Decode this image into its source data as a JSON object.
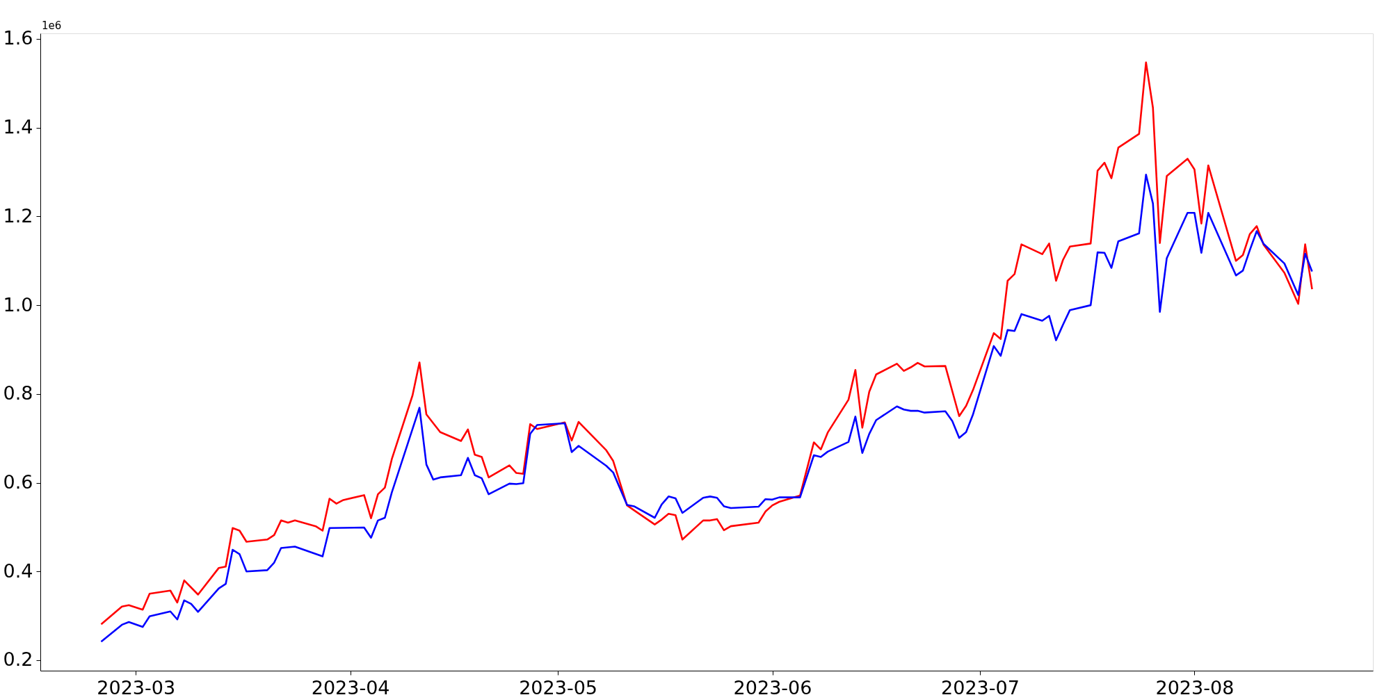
{
  "chart_data": {
    "type": "line",
    "grid": false,
    "line_style": "solid",
    "annotations": [
      "1e6"
    ],
    "xlim": [
      "2023-02-15T05:00",
      "2023-08-26T19:00"
    ],
    "xticks": [
      {
        "value": "2023-03-01",
        "label": "2023-03"
      },
      {
        "value": "2023-04-01",
        "label": "2023-04"
      },
      {
        "value": "2023-05-01",
        "label": "2023-05"
      },
      {
        "value": "2023-06-01",
        "label": "2023-06"
      },
      {
        "value": "2023-07-01",
        "label": "2023-07"
      },
      {
        "value": "2023-08-01",
        "label": "2023-08"
      }
    ],
    "ylim": [
      0.1765,
      1.6125
    ],
    "yticks": [
      0.2,
      0.4,
      0.6,
      0.8,
      {
        "value": 1.0,
        "label": "1.0"
      },
      1.2,
      1.4,
      1.6
    ],
    "series": [
      {
        "color": "#ff0000",
        "x": [
          "2023-02-24",
          "2023-02-27",
          "2023-02-28",
          "2023-03-02",
          "2023-03-03",
          "2023-03-06",
          "2023-03-07",
          "2023-03-08",
          "2023-03-10",
          "2023-03-13",
          "2023-03-14",
          "2023-03-15",
          "2023-03-16",
          "2023-03-17",
          "2023-03-20",
          "2023-03-21",
          "2023-03-22",
          "2023-03-23",
          "2023-03-24",
          "2023-03-27",
          "2023-03-28",
          "2023-03-29",
          "2023-03-30",
          "2023-03-31",
          "2023-04-03",
          "2023-04-04",
          "2023-04-05",
          "2023-04-06",
          "2023-04-07",
          "2023-04-10",
          "2023-04-11",
          "2023-04-12",
          "2023-04-14",
          "2023-04-17",
          "2023-04-18",
          "2023-04-19",
          "2023-04-20",
          "2023-04-21",
          "2023-04-24",
          "2023-04-25",
          "2023-04-26",
          "2023-04-27",
          "2023-04-28",
          "2023-05-02",
          "2023-05-03",
          "2023-05-04",
          "2023-05-08",
          "2023-05-09",
          "2023-05-11",
          "2023-05-12",
          "2023-05-15",
          "2023-05-16",
          "2023-05-17",
          "2023-05-18",
          "2023-05-19",
          "2023-05-22",
          "2023-05-23",
          "2023-05-24",
          "2023-05-25",
          "2023-05-26",
          "2023-05-30",
          "2023-05-31",
          "2023-06-01",
          "2023-06-02",
          "2023-06-05",
          "2023-06-07",
          "2023-06-08",
          "2023-06-09",
          "2023-06-12",
          "2023-06-13",
          "2023-06-14",
          "2023-06-15",
          "2023-06-16",
          "2023-06-19",
          "2023-06-20",
          "2023-06-21",
          "2023-06-22",
          "2023-06-23",
          "2023-06-26",
          "2023-06-28",
          "2023-06-29",
          "2023-06-30",
          "2023-07-03",
          "2023-07-04",
          "2023-07-05",
          "2023-07-06",
          "2023-07-07",
          "2023-07-10",
          "2023-07-11",
          "2023-07-12",
          "2023-07-13",
          "2023-07-14",
          "2023-07-17",
          "2023-07-18",
          "2023-07-19",
          "2023-07-20",
          "2023-07-21",
          "2023-07-24",
          "2023-07-25",
          "2023-07-26",
          "2023-07-27",
          "2023-07-28",
          "2023-07-31",
          "2023-08-01",
          "2023-08-02",
          "2023-08-03",
          "2023-08-07",
          "2023-08-08",
          "2023-08-09",
          "2023-08-10",
          "2023-08-11",
          "2023-08-14",
          "2023-08-16",
          "2023-08-17",
          "2023-08-18"
        ],
        "values": [
          0.281,
          0.321,
          0.324,
          0.314,
          0.35,
          0.357,
          0.33,
          0.38,
          0.348,
          0.408,
          0.411,
          0.498,
          0.492,
          0.467,
          0.472,
          0.482,
          0.515,
          0.51,
          0.515,
          0.502,
          0.492,
          0.564,
          0.553,
          0.561,
          0.572,
          0.52,
          0.574,
          0.589,
          0.653,
          0.797,
          0.871,
          0.754,
          0.714,
          0.694,
          0.72,
          0.663,
          0.658,
          0.612,
          0.639,
          0.622,
          0.62,
          0.732,
          0.721,
          0.736,
          0.695,
          0.737,
          0.673,
          0.649,
          0.549,
          0.538,
          0.506,
          0.517,
          0.53,
          0.527,
          0.472,
          0.515,
          0.515,
          0.518,
          0.493,
          0.502,
          0.51,
          0.535,
          0.549,
          0.557,
          0.571,
          0.691,
          0.675,
          0.713,
          0.787,
          0.854,
          0.724,
          0.805,
          0.844,
          0.868,
          0.852,
          0.86,
          0.87,
          0.862,
          0.863,
          0.75,
          0.773,
          0.809,
          0.937,
          0.924,
          1.055,
          1.07,
          1.137,
          1.115,
          1.139,
          1.055,
          1.102,
          1.132,
          1.139,
          1.303,
          1.321,
          1.286,
          1.355,
          1.386,
          1.547,
          1.445,
          1.14,
          1.291,
          1.33,
          1.306,
          1.184,
          1.315,
          1.1,
          1.113,
          1.16,
          1.178,
          1.136,
          1.073,
          1.003,
          1.137,
          1.036
        ]
      },
      {
        "color": "#0000ff",
        "x": [
          "2023-02-24",
          "2023-02-27",
          "2023-02-28",
          "2023-03-02",
          "2023-03-03",
          "2023-03-06",
          "2023-03-07",
          "2023-03-08",
          "2023-03-09",
          "2023-03-10",
          "2023-03-13",
          "2023-03-14",
          "2023-03-15",
          "2023-03-16",
          "2023-03-17",
          "2023-03-20",
          "2023-03-21",
          "2023-03-22",
          "2023-03-24",
          "2023-03-28",
          "2023-03-29",
          "2023-04-03",
          "2023-04-04",
          "2023-04-05",
          "2023-04-06",
          "2023-04-07",
          "2023-04-11",
          "2023-04-12",
          "2023-04-13",
          "2023-04-14",
          "2023-04-17",
          "2023-04-18",
          "2023-04-19",
          "2023-04-20",
          "2023-04-21",
          "2023-04-24",
          "2023-04-25",
          "2023-04-26",
          "2023-04-27",
          "2023-04-28",
          "2023-05-02",
          "2023-05-03",
          "2023-05-04",
          "2023-05-08",
          "2023-05-09",
          "2023-05-11",
          "2023-05-12",
          "2023-05-15",
          "2023-05-16",
          "2023-05-17",
          "2023-05-18",
          "2023-05-19",
          "2023-05-22",
          "2023-05-23",
          "2023-05-24",
          "2023-05-25",
          "2023-05-26",
          "2023-05-30",
          "2023-05-31",
          "2023-06-01",
          "2023-06-02",
          "2023-06-05",
          "2023-06-07",
          "2023-06-08",
          "2023-06-09",
          "2023-06-12",
          "2023-06-13",
          "2023-06-14",
          "2023-06-15",
          "2023-06-16",
          "2023-06-19",
          "2023-06-20",
          "2023-06-21",
          "2023-06-22",
          "2023-06-23",
          "2023-06-26",
          "2023-06-27",
          "2023-06-28",
          "2023-06-29",
          "2023-06-30",
          "2023-07-03",
          "2023-07-04",
          "2023-07-05",
          "2023-07-06",
          "2023-07-07",
          "2023-07-10",
          "2023-07-11",
          "2023-07-12",
          "2023-07-13",
          "2023-07-14",
          "2023-07-17",
          "2023-07-18",
          "2023-07-19",
          "2023-07-20",
          "2023-07-21",
          "2023-07-24",
          "2023-07-25",
          "2023-07-26",
          "2023-07-27",
          "2023-07-28",
          "2023-07-31",
          "2023-08-01",
          "2023-08-02",
          "2023-08-03",
          "2023-08-07",
          "2023-08-08",
          "2023-08-09",
          "2023-08-10",
          "2023-08-11",
          "2023-08-14",
          "2023-08-16",
          "2023-08-17",
          "2023-08-18"
        ],
        "values": [
          0.242,
          0.28,
          0.286,
          0.275,
          0.299,
          0.31,
          0.292,
          0.335,
          0.327,
          0.309,
          0.362,
          0.372,
          0.449,
          0.439,
          0.4,
          0.403,
          0.42,
          0.453,
          0.456,
          0.434,
          0.498,
          0.499,
          0.476,
          0.515,
          0.521,
          0.578,
          0.769,
          0.641,
          0.607,
          0.612,
          0.617,
          0.656,
          0.617,
          0.61,
          0.574,
          0.598,
          0.597,
          0.599,
          0.71,
          0.73,
          0.734,
          0.669,
          0.683,
          0.638,
          0.623,
          0.55,
          0.547,
          0.521,
          0.551,
          0.569,
          0.565,
          0.532,
          0.566,
          0.569,
          0.566,
          0.547,
          0.543,
          0.546,
          0.563,
          0.562,
          0.567,
          0.567,
          0.662,
          0.658,
          0.67,
          0.692,
          0.749,
          0.667,
          0.71,
          0.741,
          0.772,
          0.765,
          0.762,
          0.762,
          0.758,
          0.761,
          0.739,
          0.701,
          0.714,
          0.754,
          0.908,
          0.886,
          0.944,
          0.942,
          0.98,
          0.965,
          0.976,
          0.921,
          0.956,
          0.989,
          1.0,
          1.119,
          1.118,
          1.084,
          1.144,
          1.162,
          1.294,
          1.229,
          0.985,
          1.106,
          1.208,
          1.208,
          1.118,
          1.208,
          1.067,
          1.078,
          1.124,
          1.167,
          1.138,
          1.094,
          1.023,
          1.116,
          1.076
        ]
      }
    ]
  }
}
